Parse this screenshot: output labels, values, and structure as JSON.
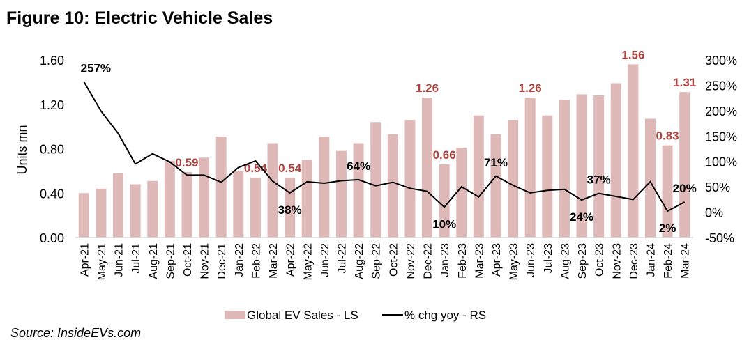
{
  "chart_data": {
    "type": "bar+line",
    "title": "Figure 10: Electric Vehicle Sales",
    "source": "Source: InsideEVs.com",
    "categories": [
      "Apr-21",
      "May-21",
      "Jun-21",
      "Jul-21",
      "Aug-21",
      "Sep-21",
      "Oct-21",
      "Nov-21",
      "Dec-21",
      "Jan-22",
      "Feb-22",
      "Mar-22",
      "Apr-22",
      "May-22",
      "Jun-22",
      "Jul-22",
      "Aug-22",
      "Sep-22",
      "Oct-22",
      "Nov-22",
      "Dec-22",
      "Jan-23",
      "Feb-23",
      "Mar-23",
      "Apr-23",
      "May-23",
      "Jun-23",
      "Jul-23",
      "Aug-23",
      "Sep-23",
      "Oct-23",
      "Nov-23",
      "Dec-23",
      "Jan-24",
      "Feb-24",
      "Mar-24"
    ],
    "series": [
      {
        "name": "Global EV Sales - LS",
        "type": "bar",
        "axis": "left",
        "color": "#DEB9B8",
        "values": [
          0.4,
          0.44,
          0.58,
          0.48,
          0.51,
          0.69,
          0.59,
          0.72,
          0.91,
          0.6,
          0.54,
          0.85,
          0.54,
          0.7,
          0.91,
          0.78,
          0.85,
          1.04,
          0.93,
          1.06,
          1.26,
          0.66,
          0.81,
          1.1,
          0.93,
          1.06,
          1.26,
          1.1,
          1.24,
          1.29,
          1.28,
          1.39,
          1.56,
          1.07,
          0.83,
          1.31
        ],
        "data_labels": [
          {
            "category": "Oct-21",
            "text": "0.59"
          },
          {
            "category": "Feb-22",
            "text": "0.54"
          },
          {
            "category": "Apr-22",
            "text": "0.54"
          },
          {
            "category": "Dec-22",
            "text": "1.26"
          },
          {
            "category": "Jan-23",
            "text": "0.66"
          },
          {
            "category": "Jun-23",
            "text": "1.26"
          },
          {
            "category": "Dec-23",
            "text": "1.56"
          },
          {
            "category": "Feb-24",
            "text": "0.83"
          },
          {
            "category": "Mar-24",
            "text": "1.31"
          }
        ],
        "label_color": "#B0433F"
      },
      {
        "name": "% chg yoy - RS",
        "type": "line",
        "axis": "right",
        "color": "#000000",
        "values": [
          257,
          199,
          155,
          95,
          115,
          99,
          73,
          73,
          59,
          88,
          101,
          61,
          38,
          60,
          57,
          62,
          64,
          52,
          59,
          47,
          41,
          10,
          50,
          30,
          71,
          53,
          38,
          43,
          45,
          24,
          37,
          31,
          25,
          60,
          2,
          20
        ],
        "data_labels": [
          {
            "category": "Apr-21",
            "text": "257%",
            "pos": "above"
          },
          {
            "category": "Apr-22",
            "text": "38%",
            "pos": "below"
          },
          {
            "category": "Aug-22",
            "text": "64%",
            "pos": "above"
          },
          {
            "category": "Jan-23",
            "text": "10%",
            "pos": "below"
          },
          {
            "category": "Apr-23",
            "text": "71%",
            "pos": "above"
          },
          {
            "category": "Sep-23",
            "text": "24%",
            "pos": "below"
          },
          {
            "category": "Oct-23",
            "text": "37%",
            "pos": "above"
          },
          {
            "category": "Feb-24",
            "text": "2%",
            "pos": "below"
          },
          {
            "category": "Mar-24",
            "text": "20%",
            "pos": "above"
          }
        ]
      }
    ],
    "ylabel": "Units mn",
    "ylim": [
      0,
      1.6
    ],
    "yticks": [
      "0.00",
      "0.40",
      "0.80",
      "1.20",
      "1.60"
    ],
    "ytick_values": [
      0,
      0.4,
      0.8,
      1.2,
      1.6
    ],
    "y2lim": [
      -50,
      300
    ],
    "y2ticks": [
      "-50%",
      "0%",
      "50%",
      "100%",
      "150%",
      "200%",
      "250%",
      "300%"
    ],
    "y2tick_values": [
      -50,
      0,
      50,
      100,
      150,
      200,
      250,
      300
    ],
    "grid": false,
    "legend": {
      "placement": "bottom-center",
      "items": [
        "Global EV Sales - LS",
        "% chg yoy - RS"
      ]
    }
  }
}
